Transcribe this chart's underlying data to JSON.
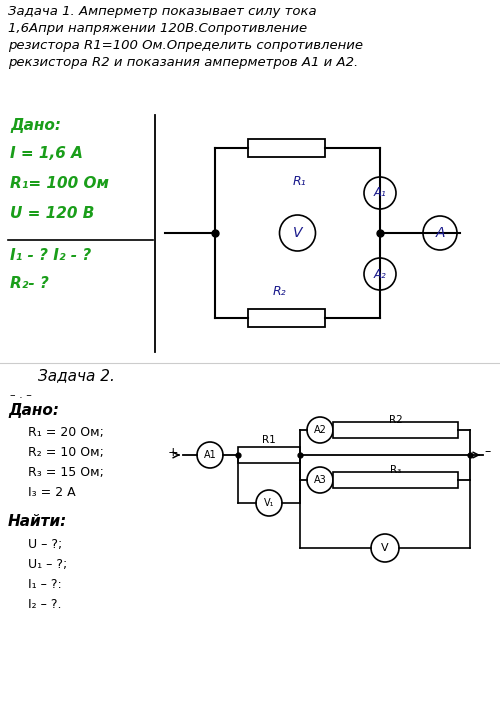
{
  "bg_color": "#ffffff",
  "task1_text": "Задача 1. Амперметр показывает силу тока\n1,6Апри напряжении 120В.Сопротивление\nрезистора R1=100 Ом.Определить сопротивление\nрекзистора R2 и показания амперметров А1 и А2.",
  "task1_given_title": "Дано:",
  "task1_given": [
    "I = 1,6 А",
    "R₁= 100 Ом",
    "U = 120 В"
  ],
  "task1_find": [
    "I₁ - ? I₂ - ?",
    "R₂- ?"
  ],
  "task2_title": "Задача 2.",
  "task2_dashes": "– . –",
  "task2_given_title": "Дано:",
  "task2_given": [
    "R₁ = 20 Ом;",
    "R₂ = 10 Ом;",
    "R₃ = 15 Ом;",
    "I₃ = 2 А"
  ],
  "task2_find_title": "Найти:",
  "task2_find": [
    "U – ?;",
    "U₁ – ?;",
    "I₁ – ?:",
    "I₂ – ?."
  ],
  "green": "#1a9e1a",
  "blue_dark": "#1a1a8c"
}
